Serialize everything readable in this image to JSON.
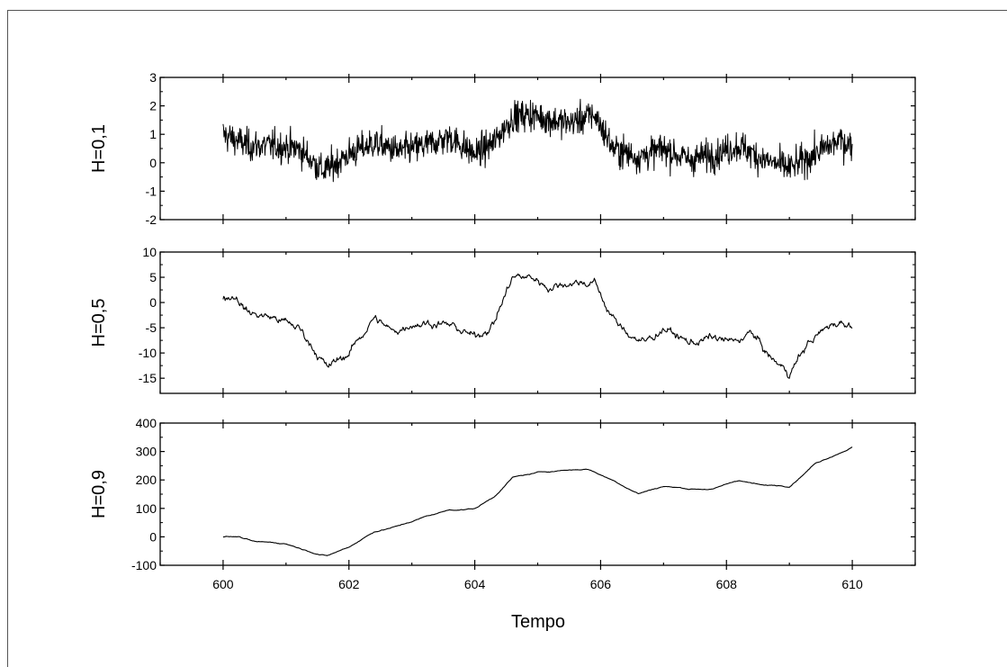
{
  "chart_data": {
    "type": "line",
    "x_range": [
      599,
      611
    ],
    "x_ticks": [
      600,
      602,
      604,
      606,
      608,
      610
    ],
    "xlabel": "Tempo",
    "line_color": "#000000",
    "panels": [
      {
        "ylabel": "H=0,1",
        "ylim": [
          -2,
          3
        ],
        "y_ticks": [
          3,
          2,
          1,
          0,
          -1,
          -2
        ],
        "hurst": 0.1,
        "anchors": {
          "x": [
            600,
            600.4,
            600.8,
            601.2,
            601.6,
            602.0,
            602.4,
            602.8,
            603.2,
            603.6,
            604.0,
            604.3,
            604.6,
            604.9,
            605.2,
            605.5,
            605.9,
            606.2,
            606.6,
            607.0,
            607.4,
            607.8,
            608.2,
            608.6,
            609.0,
            609.4,
            609.8,
            610.0
          ],
          "y": [
            1.0,
            0.6,
            0.6,
            0.5,
            -0.3,
            0.3,
            0.7,
            0.4,
            0.6,
            0.9,
            0.3,
            0.7,
            1.6,
            1.7,
            1.5,
            1.4,
            1.7,
            0.5,
            0.2,
            0.5,
            0.1,
            0.3,
            0.6,
            0.1,
            -0.2,
            0.3,
            0.8,
            0.6
          ]
        }
      },
      {
        "ylabel": "H=0,5",
        "ylim": [
          -18,
          10
        ],
        "y_ticks": [
          10,
          5,
          0,
          -5,
          -10,
          -15
        ],
        "hurst": 0.5,
        "anchors": {
          "x": [
            600,
            600.2,
            600.4,
            600.8,
            601.2,
            601.5,
            601.65,
            602.0,
            602.4,
            602.7,
            603.0,
            603.4,
            603.7,
            604.0,
            604.3,
            604.6,
            604.9,
            605.2,
            605.5,
            605.9,
            606.1,
            606.3,
            606.7,
            607.0,
            607.4,
            607.8,
            608.1,
            608.4,
            608.7,
            609.0,
            609.3,
            609.7,
            610.0
          ],
          "y": [
            1,
            1.5,
            -2,
            -3,
            -5,
            -10,
            -13,
            -10,
            -3,
            -6,
            -4,
            -4,
            -5,
            -7,
            -4,
            5,
            5,
            3,
            4,
            4,
            -1,
            -5,
            -8,
            -5,
            -8,
            -7,
            -8,
            -6,
            -11,
            -14,
            -8,
            -4,
            -4
          ]
        }
      },
      {
        "ylabel": "H=0,9",
        "ylim": [
          -100,
          400
        ],
        "y_ticks": [
          400,
          300,
          200,
          100,
          0,
          -100
        ],
        "hurst": 0.9,
        "anchors": {
          "x": [
            600,
            600.25,
            600.5,
            601.0,
            601.3,
            601.65,
            602.0,
            602.4,
            602.8,
            603.2,
            603.6,
            604.0,
            604.3,
            604.6,
            605.0,
            605.4,
            605.8,
            606.2,
            606.6,
            607.0,
            607.4,
            607.8,
            608.2,
            608.6,
            609.0,
            609.4,
            610.0
          ],
          "y": [
            0,
            0,
            -20,
            -25,
            -45,
            -65,
            -35,
            20,
            40,
            70,
            95,
            100,
            140,
            210,
            225,
            235,
            240,
            200,
            155,
            180,
            170,
            170,
            200,
            180,
            180,
            260,
            320
          ]
        }
      }
    ]
  }
}
